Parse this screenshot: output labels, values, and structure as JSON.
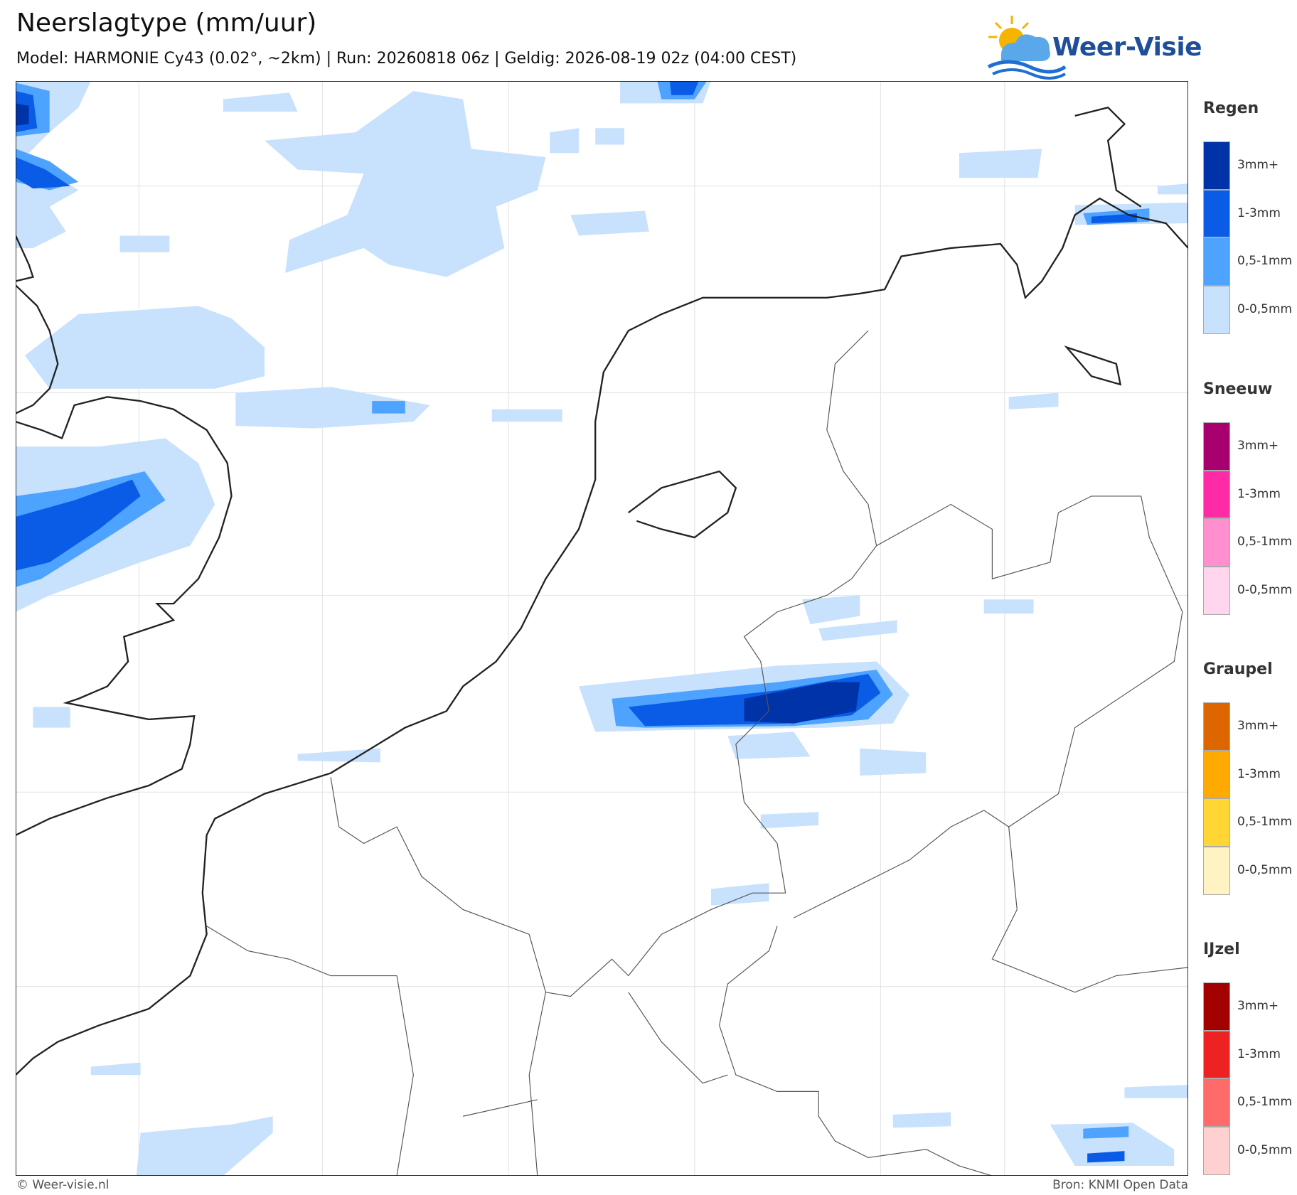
{
  "header": {
    "title": "Neerslagtype (mm/uur)",
    "subtitle": "Model: HARMONIE Cy43 (0.02°, ~2km)  |  Run: 20260818 06z  |  Geldig: 2026-08-19 02z (04:00 CEST)",
    "logo": "Weer-Visie"
  },
  "legend": [
    {
      "title": "Regen",
      "items": [
        {
          "label": "3mm+",
          "color": "#0033a8"
        },
        {
          "label": "1-3mm",
          "color": "#0a5ce6"
        },
        {
          "label": "0,5-1mm",
          "color": "#4da3ff"
        },
        {
          "label": "0-0,5mm",
          "color": "#c8e1fc"
        }
      ]
    },
    {
      "title": "Sneeuw",
      "items": [
        {
          "label": "3mm+",
          "color": "#a8006e"
        },
        {
          "label": "1-3mm",
          "color": "#ff2aa6"
        },
        {
          "label": "0,5-1mm",
          "color": "#ff8fcf"
        },
        {
          "label": "0-0,5mm",
          "color": "#ffd6ee"
        }
      ]
    },
    {
      "title": "Graupel",
      "items": [
        {
          "label": "3mm+",
          "color": "#dd6600"
        },
        {
          "label": "1-3mm",
          "color": "#ffaa00"
        },
        {
          "label": "0,5-1mm",
          "color": "#ffd633"
        },
        {
          "label": "0-0,5mm",
          "color": "#fff3c4"
        }
      ]
    },
    {
      "title": "IJzel",
      "items": [
        {
          "label": "3mm+",
          "color": "#a30000"
        },
        {
          "label": "1-3mm",
          "color": "#ee2222"
        },
        {
          "label": "0,5-1mm",
          "color": "#ff6b6b"
        },
        {
          "label": "0-0,5mm",
          "color": "#ffd0d0"
        }
      ]
    }
  ],
  "footer": {
    "copyright": "© Weer-visie.nl",
    "source": "Bron: KNMI Open Data"
  }
}
